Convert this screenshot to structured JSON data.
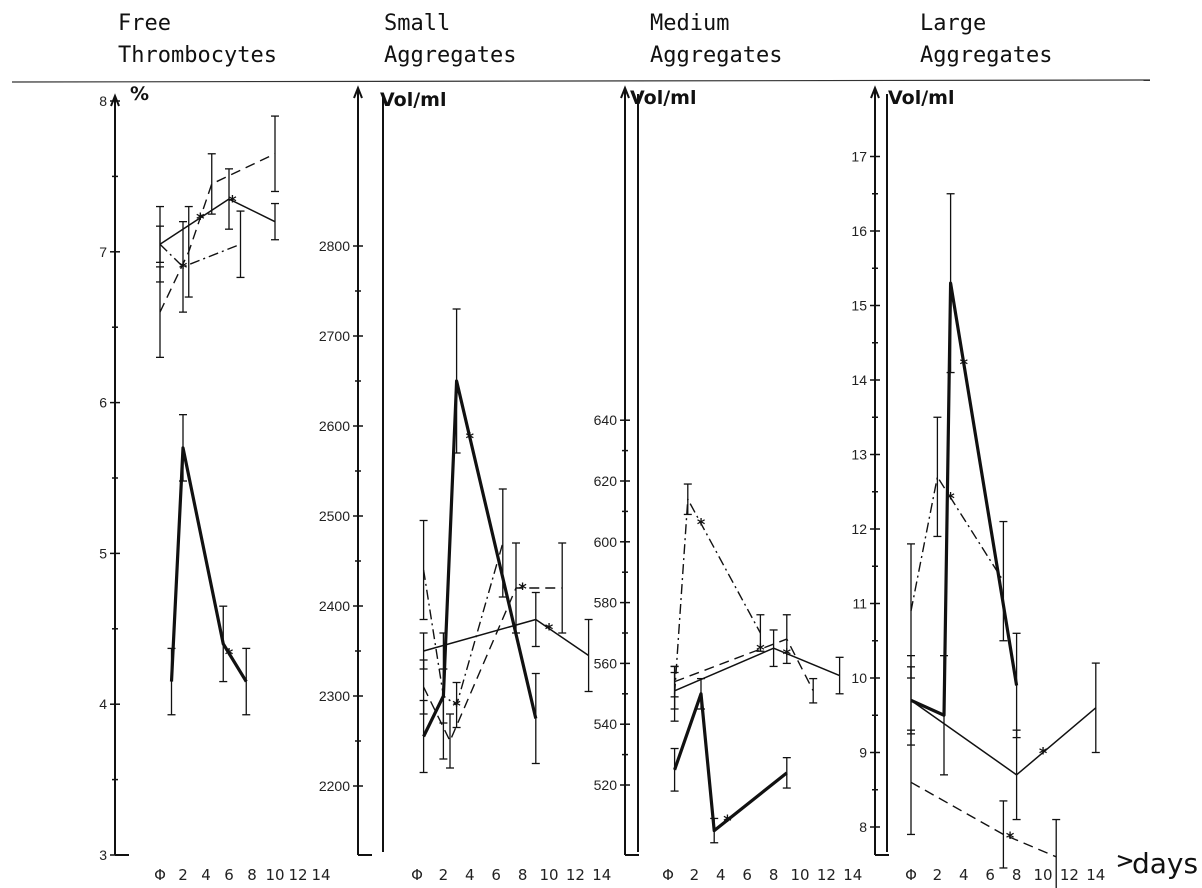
{
  "x_axis": {
    "label": "days",
    "tick_labels": [
      "Φ",
      "2",
      "4",
      "6",
      "8",
      "10",
      "12",
      "14"
    ]
  },
  "chart_data": [
    {
      "type": "line",
      "title": "Free Thrombocytes",
      "ylabel": "%",
      "ylim": [
        3,
        8
      ],
      "yticks": [
        3,
        4,
        5,
        6,
        7,
        8
      ],
      "series": [
        {
          "style": "thick-solid",
          "x": [
            0,
            1,
            4.5,
            6.5
          ],
          "y": [
            4.15,
            5.7,
            4.4,
            4.15
          ],
          "err": [
            0.22,
            0.22,
            0.25,
            0.22
          ],
          "star_at": 5
        },
        {
          "style": "solid",
          "x": [
            -1,
            5,
            9
          ],
          "y": [
            7.05,
            7.35,
            7.2
          ],
          "err": [
            0.25,
            0.2,
            0.12
          ],
          "star_at": 5.3
        },
        {
          "style": "dashed",
          "x": [
            -1,
            1.5,
            3.5,
            9
          ],
          "y": [
            6.6,
            7.0,
            7.45,
            7.65
          ],
          "err": [
            0.3,
            0.3,
            0.2,
            0.25
          ],
          "star_at": 2.5
        },
        {
          "style": "dash-dot",
          "x": [
            -1,
            1,
            6
          ],
          "y": [
            7.05,
            6.9,
            7.05
          ],
          "err": [
            0.12,
            0.3,
            0.22
          ],
          "star_at": 1
        }
      ]
    },
    {
      "type": "line",
      "title": "Small Aggregates",
      "ylabel": "Vol/ml",
      "ylim": [
        2100,
        3000
      ],
      "yticks": [
        2200,
        2300,
        2400,
        2500,
        2600,
        2700,
        2800
      ],
      "series": [
        {
          "style": "thick-solid",
          "x": [
            -0.5,
            1,
            2,
            8
          ],
          "y": [
            2255,
            2300,
            2650,
            2275
          ],
          "err": [
            0.04,
            0.07,
            0.08,
            0.05
          ],
          "star_at": 3
        },
        {
          "style": "solid",
          "x": [
            -0.5,
            8,
            12
          ],
          "y": [
            2350,
            2385,
            2345
          ],
          "err": [
            0.02,
            0.03,
            0.04
          ],
          "star_at": 9
        },
        {
          "style": "dashed",
          "x": [
            -0.5,
            1.5,
            6.5,
            10
          ],
          "y": [
            2310,
            2250,
            2420,
            2420
          ],
          "err": [
            0.03,
            0.03,
            0.05,
            0.05
          ],
          "star_at": 7
        },
        {
          "style": "dash-dot",
          "x": [
            -0.5,
            1,
            2,
            5.5
          ],
          "y": [
            2440,
            2300,
            2290,
            2470
          ],
          "err": [
            0.055,
            0.03,
            0.025,
            0.06
          ],
          "star_at": 2
        }
      ]
    },
    {
      "type": "line",
      "title": "Medium Aggregates",
      "ylabel": "Vol/ml",
      "ylim": [
        500,
        690
      ],
      "yticks": [
        520,
        540,
        560,
        580,
        600,
        620,
        640
      ],
      "series": [
        {
          "style": "thick-solid",
          "x": [
            -0.5,
            1.5,
            2.5,
            8
          ],
          "y": [
            525,
            550,
            505,
            524
          ],
          "err": [
            7,
            5,
            4,
            5
          ],
          "star_at": 3.5
        },
        {
          "style": "solid",
          "x": [
            -0.5,
            7,
            12
          ],
          "y": [
            551,
            565,
            556
          ],
          "err": [
            6,
            6,
            6
          ],
          "star_at": 8
        },
        {
          "style": "dashed",
          "x": [
            -0.5,
            8,
            10
          ],
          "y": [
            554,
            568,
            551
          ],
          "err": [
            5,
            8,
            4
          ],
          "star_at": 6
        },
        {
          "style": "dash-dot",
          "x": [
            -0.5,
            0.5,
            6
          ],
          "y": [
            550,
            614,
            570
          ],
          "err": [
            9,
            5,
            6
          ],
          "star_at": 1.5
        }
      ]
    },
    {
      "type": "line",
      "title": "Large Aggregates",
      "ylabel": "Vol/ml",
      "ylim": [
        7,
        17
      ],
      "yticks": [
        8,
        9,
        10,
        11,
        12,
        13,
        14,
        15,
        16,
        17
      ],
      "series": [
        {
          "style": "thick-solid",
          "x": [
            -1,
            1.5,
            2,
            7
          ],
          "y": [
            9.7,
            9.5,
            15.3,
            9.9
          ],
          "err": [
            0.45,
            0.8,
            1.2,
            0.7
          ],
          "star_at": 3
        },
        {
          "style": "solid",
          "x": [
            -1,
            7,
            13
          ],
          "y": [
            9.7,
            8.7,
            9.6
          ],
          "err": [
            0.6,
            0.6,
            0.6
          ],
          "star_at": 9
        },
        {
          "style": "dashed",
          "x": [
            -1,
            6,
            10
          ],
          "y": [
            8.6,
            7.9,
            7.6
          ],
          "err": [
            0.7,
            0.45,
            0.5
          ],
          "star_at": 6.5
        },
        {
          "style": "dash-dot",
          "x": [
            -1,
            1,
            6
          ],
          "y": [
            10.9,
            12.7,
            11.3
          ],
          "err": [
            0.9,
            0.8,
            0.8
          ],
          "star_at": 2
        }
      ]
    }
  ],
  "panel_titles": [
    [
      "Free",
      "Thrombocytes"
    ],
    [
      "Small",
      "Aggregates"
    ],
    [
      "Medium",
      "Aggregates"
    ],
    [
      "Large",
      "Aggregates"
    ]
  ]
}
